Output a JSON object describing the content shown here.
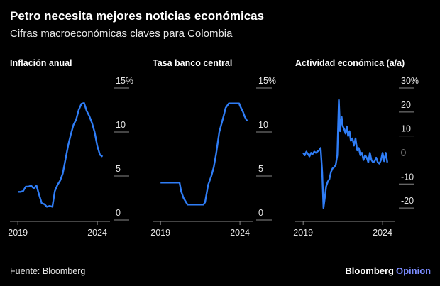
{
  "page": {
    "title": "Petro necesita mejores noticias económicas",
    "subtitle": "Cifras macroeconómicas claves para Colombia",
    "source": "Fuente: Bloomberg",
    "brand": "Bloomberg",
    "brand_sub": "Opinion"
  },
  "chart_data": [
    {
      "type": "line",
      "title": "Inflación anual",
      "color": "#2f7df6",
      "x": [
        2019.0,
        2019.17,
        2019.33,
        2019.5,
        2019.67,
        2019.83,
        2020.0,
        2020.17,
        2020.33,
        2020.5,
        2020.67,
        2020.83,
        2021.0,
        2021.17,
        2021.33,
        2021.5,
        2021.67,
        2021.83,
        2022.0,
        2022.17,
        2022.33,
        2022.5,
        2022.67,
        2022.83,
        2023.0,
        2023.17,
        2023.33,
        2023.5,
        2023.67,
        2023.83,
        2024.0,
        2024.17,
        2024.33
      ],
      "values": [
        3.2,
        3.2,
        3.3,
        3.8,
        3.8,
        3.9,
        3.6,
        3.9,
        2.9,
        1.9,
        1.8,
        1.5,
        1.6,
        1.5,
        3.3,
        4.0,
        4.5,
        5.3,
        6.9,
        8.5,
        9.7,
        10.8,
        11.4,
        12.5,
        13.2,
        13.3,
        12.4,
        11.8,
        11.0,
        10.0,
        8.4,
        7.4,
        7.2
      ],
      "xlim": [
        2018.5,
        2024.8
      ],
      "xticks": [
        2019,
        2024
      ],
      "ylim": [
        0,
        15
      ],
      "yticks": [
        0,
        5,
        10,
        {
          "value": 15,
          "label": "15%"
        }
      ]
    },
    {
      "type": "line",
      "title": "Tasa banco central",
      "color": "#2f7df6",
      "x": [
        2019.0,
        2020.2,
        2020.3,
        2020.45,
        2020.7,
        2021.7,
        2021.8,
        2021.9,
        2022.0,
        2022.2,
        2022.35,
        2022.5,
        2022.7,
        2022.85,
        2023.0,
        2023.1,
        2023.3,
        2023.95,
        2024.0,
        2024.2,
        2024.3,
        2024.45
      ],
      "values": [
        4.25,
        4.25,
        3.25,
        2.5,
        1.75,
        1.75,
        2.0,
        3.0,
        4.0,
        5.0,
        6.0,
        7.5,
        10.0,
        11.0,
        12.0,
        12.75,
        13.25,
        13.25,
        13.0,
        12.25,
        11.75,
        11.25
      ],
      "xlim": [
        2018.5,
        2024.8
      ],
      "xticks": [
        2019,
        2024
      ],
      "ylim": [
        0,
        15
      ],
      "yticks": [
        0,
        5,
        10,
        {
          "value": 15,
          "label": "15%"
        }
      ]
    },
    {
      "type": "line",
      "title": "Actividad económica (a/a)",
      "color": "#2f7df6",
      "x": [
        2019.0,
        2019.1,
        2019.2,
        2019.3,
        2019.4,
        2019.5,
        2019.6,
        2019.7,
        2019.8,
        2019.9,
        2020.0,
        2020.1,
        2020.2,
        2020.28,
        2020.36,
        2020.45,
        2020.55,
        2020.65,
        2020.75,
        2020.85,
        2020.95,
        2021.05,
        2021.15,
        2021.25,
        2021.33,
        2021.42,
        2021.5,
        2021.58,
        2021.67,
        2021.75,
        2021.83,
        2021.92,
        2022.0,
        2022.1,
        2022.2,
        2022.3,
        2022.4,
        2022.5,
        2022.6,
        2022.7,
        2022.8,
        2022.9,
        2023.0,
        2023.1,
        2023.2,
        2023.3,
        2023.4,
        2023.5,
        2023.6,
        2023.7,
        2023.8,
        2023.9,
        2024.0,
        2024.1,
        2024.2,
        2024.3
      ],
      "values": [
        3,
        2,
        3.5,
        2.5,
        1.5,
        3,
        2.5,
        3.5,
        3,
        3.5,
        4,
        5,
        -5,
        -20,
        -16,
        -11,
        -9,
        -8,
        -5,
        -3.5,
        -3,
        -2,
        2,
        25,
        12,
        18,
        14,
        13,
        11,
        14,
        10,
        12,
        8,
        9,
        6,
        9,
        4,
        5,
        2,
        3,
        0,
        2,
        1,
        -1,
        3,
        0,
        -1,
        -0.5,
        1,
        -1,
        -1.5,
        0,
        3,
        -0.5,
        3,
        -1
      ],
      "xlim": [
        2018.5,
        2024.8
      ],
      "xticks": [
        2019,
        2024
      ],
      "ylim": [
        -25,
        30
      ],
      "yticks": [
        -20,
        -10,
        0,
        10,
        20,
        {
          "value": 30,
          "label": "30%"
        }
      ]
    }
  ]
}
